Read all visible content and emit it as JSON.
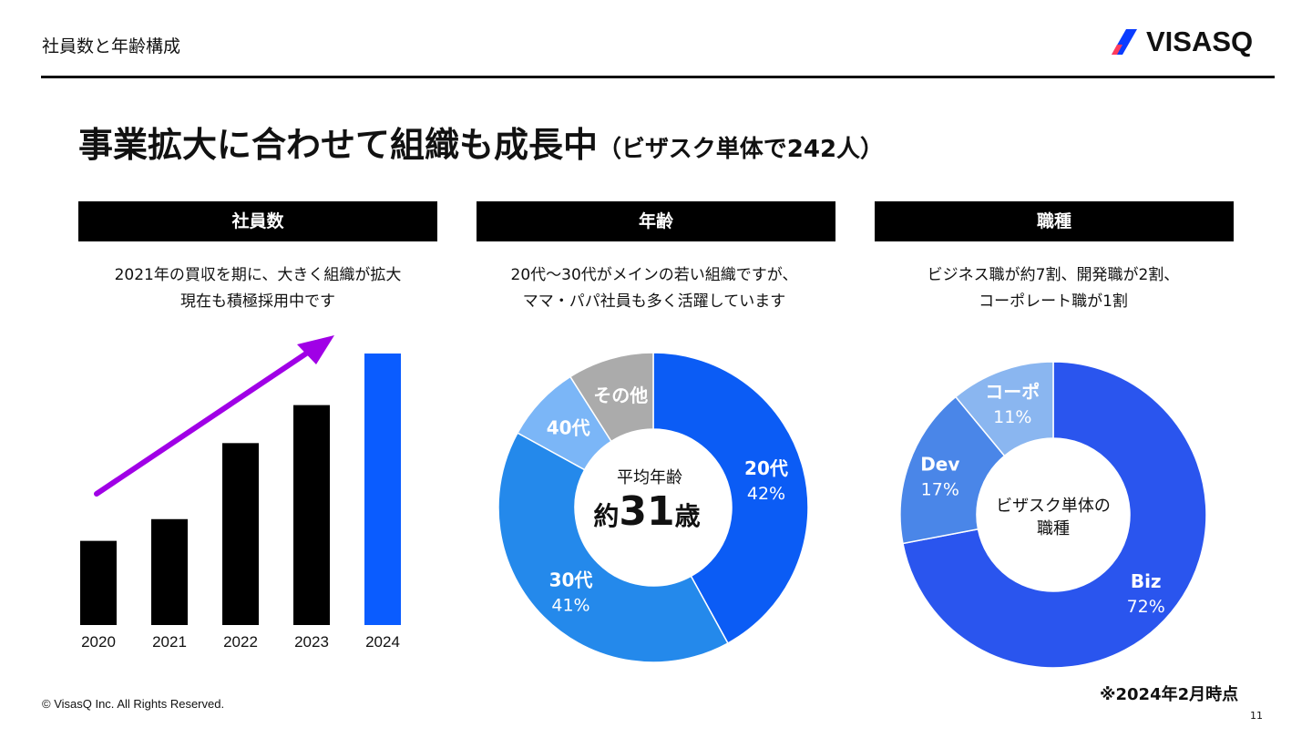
{
  "header": {
    "section_title": "社員数と年齢構成",
    "logo_text": "VISASQ"
  },
  "headline": {
    "main": "事業拡大に合わせて組織も成長中",
    "sub": "（ビザスク単体で242人）"
  },
  "panels": [
    {
      "heading": "社員数",
      "desc_lines": [
        "2021年の買収を期に、大きく組織が拡大",
        "現在も積極採用中です"
      ]
    },
    {
      "heading": "年齢",
      "desc_lines": [
        "20代〜30代がメインの若い組織ですが、",
        "ママ・パパ社員も多く活躍しています"
      ]
    },
    {
      "heading": "職種",
      "desc_lines": [
        "ビジネス職が約7割、開発職が2割、",
        "コーポレート職が1割"
      ]
    }
  ],
  "chart_data": [
    {
      "type": "bar",
      "categories": [
        "2020",
        "2021",
        "2022",
        "2023",
        "2024"
      ],
      "values": [
        31,
        39,
        67,
        81,
        100
      ],
      "colors": [
        "#000000",
        "#000000",
        "#000000",
        "#000000",
        "#0a5cff"
      ],
      "arrow_color": "#a000e6",
      "ylim": [
        0,
        100
      ]
    },
    {
      "type": "pie",
      "center_label": "平均年齢",
      "center_value": "約31歳",
      "center_value_num": "31",
      "center_value_pre": "約",
      "center_value_post": "歳",
      "slices": [
        {
          "label": "20代",
          "pct_text": "42%",
          "value": 42,
          "color": "#0b5cf5",
          "text_color": "#ffffff"
        },
        {
          "label": "30代",
          "pct_text": "41%",
          "value": 41,
          "color": "#2489eb",
          "text_color": "#ffffff"
        },
        {
          "label": "40代",
          "pct_text": "",
          "value": 8,
          "color": "#7bb6f7",
          "text_color": "#ffffff"
        },
        {
          "label": "その他",
          "pct_text": "",
          "value": 9,
          "color": "#ababab",
          "text_color": "#ffffff"
        }
      ]
    },
    {
      "type": "pie",
      "center_label_lines": [
        "ビザスク単体の",
        "職種"
      ],
      "slices": [
        {
          "label": "Biz",
          "pct_text": "72%",
          "value": 72,
          "color": "#2a55ee",
          "text_color": "#ffffff"
        },
        {
          "label": "Dev",
          "pct_text": "17%",
          "value": 17,
          "color": "#4a86e8",
          "text_color": "#ffffff"
        },
        {
          "label": "コーポ",
          "pct_text": "11%",
          "value": 11,
          "color": "#8ab6f0",
          "text_color": "#ffffff"
        }
      ]
    }
  ],
  "footer": {
    "copyright": "© VisasQ Inc. All Rights Reserved.",
    "as_of": "※2024年2月時点",
    "page_number": "11"
  }
}
